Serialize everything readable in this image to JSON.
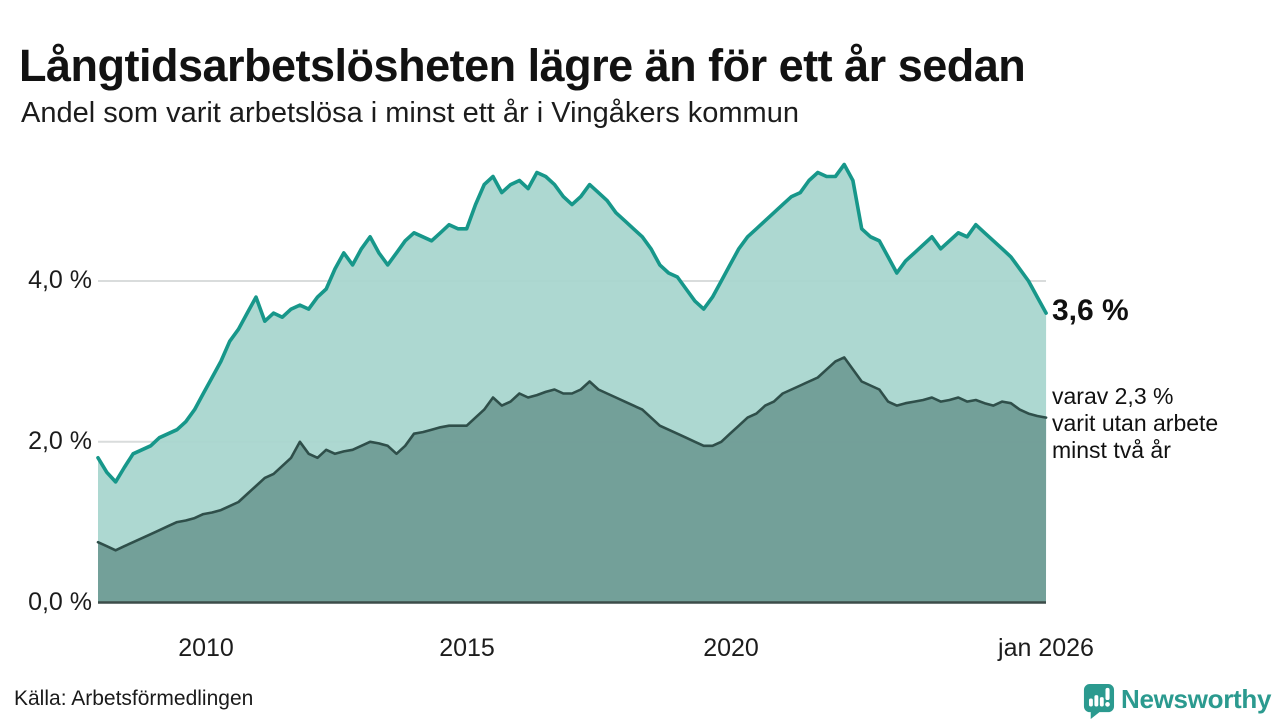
{
  "header": {
    "title": "Långtidsarbetslösheten lägre än för ett år sedan",
    "subtitle": "Andel som varit arbetslösa i minst ett år i Vingåkers kommun"
  },
  "annotations": {
    "latest_value": "3,6 %",
    "secondary_line1": "varav 2,3 %",
    "secondary_line2": "varit utan arbete",
    "secondary_line3": "minst två år"
  },
  "footer": {
    "source": "Källa: Arbetsförmedlingen",
    "brand_name": "Newsworthy",
    "brand_color": "#2b9a8f"
  },
  "chart_data": {
    "type": "area",
    "title": "Långtidsarbetslösheten lägre än för ett år sedan",
    "subtitle": "Andel som varit arbetslösa i minst ett år i Vingåkers kommun",
    "unit": "%",
    "x_start_year": 2008,
    "x_step_years": 0.1666667,
    "x_ticks": [
      {
        "year": 2010,
        "label": "2010"
      },
      {
        "year": 2015,
        "label": "2015"
      },
      {
        "year": 2020,
        "label": "2020"
      },
      {
        "year": 2026,
        "label": "jan 2026"
      }
    ],
    "y_ticks": [
      {
        "value": 0,
        "label": "0,0 %"
      },
      {
        "value": 2,
        "label": "2,0 %"
      },
      {
        "value": 4,
        "label": "4,0 %"
      }
    ],
    "ylim": [
      0,
      5.6
    ],
    "grid_color": "#d9dcdc",
    "axis_line_color": "#3c4c49",
    "series": [
      {
        "name": "Andel arbetslösa minst ett år",
        "line_color": "#17978a",
        "fill_color": "#a7d5ce",
        "latest_value": 3.6,
        "latest_label": "3,6 %",
        "values": [
          1.8,
          1.62,
          1.5,
          1.68,
          1.85,
          1.9,
          1.95,
          2.05,
          2.1,
          2.15,
          2.25,
          2.4,
          2.6,
          2.8,
          3.0,
          3.25,
          3.4,
          3.6,
          3.8,
          3.5,
          3.6,
          3.55,
          3.65,
          3.7,
          3.65,
          3.8,
          3.9,
          4.15,
          4.35,
          4.2,
          4.4,
          4.55,
          4.35,
          4.2,
          4.35,
          4.5,
          4.6,
          4.55,
          4.5,
          4.6,
          4.7,
          4.65,
          4.65,
          4.95,
          5.2,
          5.3,
          5.1,
          5.2,
          5.25,
          5.15,
          5.35,
          5.3,
          5.2,
          5.05,
          4.95,
          5.05,
          5.2,
          5.1,
          5.0,
          4.85,
          4.75,
          4.65,
          4.55,
          4.4,
          4.2,
          4.1,
          4.05,
          3.9,
          3.75,
          3.65,
          3.8,
          4.0,
          4.2,
          4.4,
          4.55,
          4.65,
          4.75,
          4.85,
          4.95,
          5.05,
          5.1,
          5.25,
          5.35,
          5.3,
          5.3,
          5.45,
          5.25,
          4.65,
          4.55,
          4.5,
          4.3,
          4.1,
          4.25,
          4.35,
          4.45,
          4.55,
          4.4,
          4.5,
          4.6,
          4.55,
          4.7,
          4.6,
          4.5,
          4.4,
          4.3,
          4.15,
          4.0,
          3.8,
          3.6
        ]
      },
      {
        "name": "Andel arbetslösa minst två år",
        "line_color": "#2f4f4a",
        "fill_color": "#6f9b94",
        "latest_value": 2.3,
        "latest_label": "2,3 %",
        "values": [
          0.75,
          0.7,
          0.65,
          0.7,
          0.75,
          0.8,
          0.85,
          0.9,
          0.95,
          1.0,
          1.02,
          1.05,
          1.1,
          1.12,
          1.15,
          1.2,
          1.25,
          1.35,
          1.45,
          1.55,
          1.6,
          1.7,
          1.8,
          2.0,
          1.85,
          1.8,
          1.9,
          1.85,
          1.88,
          1.9,
          1.95,
          2.0,
          1.98,
          1.95,
          1.85,
          1.95,
          2.1,
          2.12,
          2.15,
          2.18,
          2.2,
          2.2,
          2.2,
          2.3,
          2.4,
          2.55,
          2.45,
          2.5,
          2.6,
          2.55,
          2.58,
          2.62,
          2.65,
          2.6,
          2.6,
          2.65,
          2.75,
          2.65,
          2.6,
          2.55,
          2.5,
          2.45,
          2.4,
          2.3,
          2.2,
          2.15,
          2.1,
          2.05,
          2.0,
          1.95,
          1.95,
          2.0,
          2.1,
          2.2,
          2.3,
          2.35,
          2.45,
          2.5,
          2.6,
          2.65,
          2.7,
          2.75,
          2.8,
          2.9,
          3.0,
          3.05,
          2.9,
          2.75,
          2.7,
          2.65,
          2.5,
          2.45,
          2.48,
          2.5,
          2.52,
          2.55,
          2.5,
          2.52,
          2.55,
          2.5,
          2.52,
          2.48,
          2.45,
          2.5,
          2.48,
          2.4,
          2.35,
          2.32,
          2.3
        ]
      }
    ]
  }
}
